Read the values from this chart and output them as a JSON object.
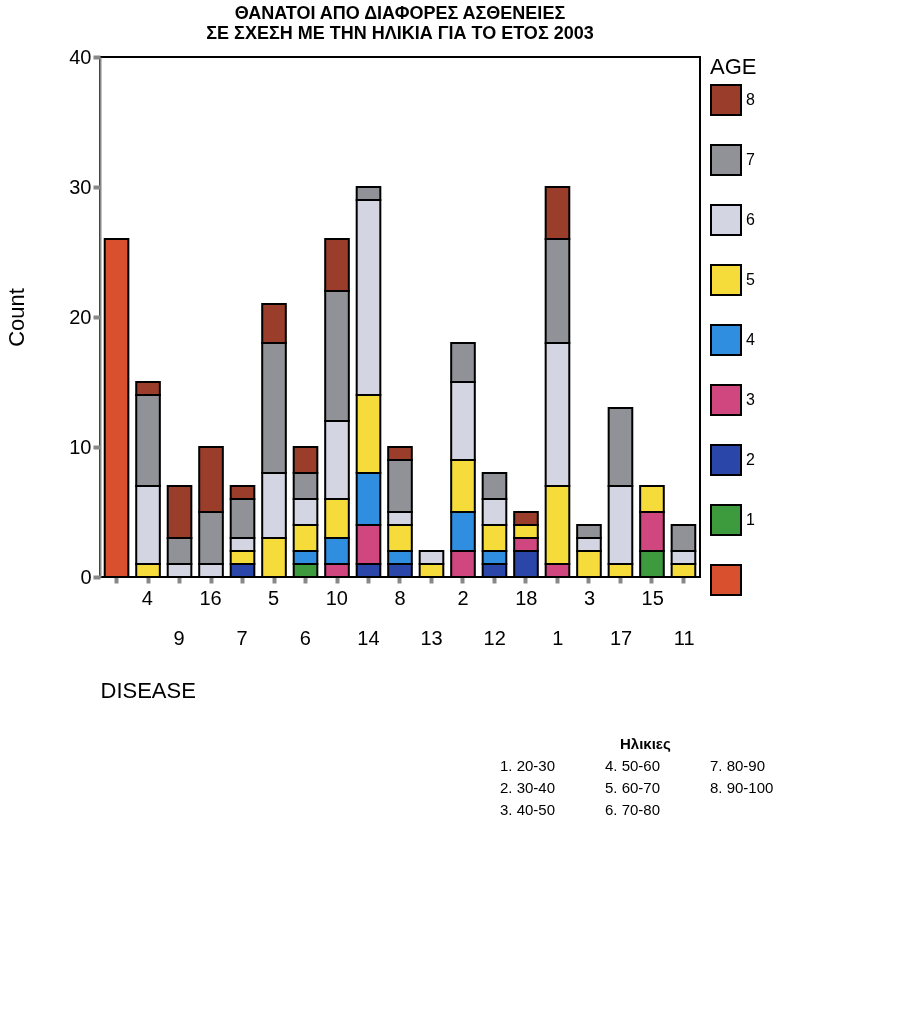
{
  "chart_data": {
    "type": "bar",
    "title": "ΘΑΝΑΤΟΙ ΑΠΟ ΔΙΑΦΟΡΕΣ ΑΣΘΕΝΕΙΕΣ\nΣΕ ΣΧΕΣΗ ΜΕ ΤΗΝ ΗΛΙΚΙΑ ΓΙΑ ΤΟ ΕΤΟΣ 2003",
    "xlabel": "DISEASE",
    "ylabel": "Count",
    "legend_title": "AGE",
    "categories": [
      null,
      "4",
      "9",
      "16",
      "7",
      "5",
      "6",
      "10",
      "14",
      "8",
      "13",
      "2",
      "12",
      "18",
      "1",
      "3",
      "17",
      "15",
      "11"
    ],
    "stacked": true,
    "ylim": [
      0,
      40
    ],
    "yticks": [
      0,
      10,
      20,
      30,
      40
    ],
    "grid": false,
    "legend": "right",
    "series": [
      {
        "color": "#d9502f",
        "values": [
          26,
          null,
          null,
          null,
          null,
          null,
          null,
          null,
          null,
          null,
          null,
          null,
          null,
          null,
          null,
          null,
          null,
          null,
          null
        ]
      },
      {
        "name": "1",
        "color": "#3d9a3d",
        "values": [
          null,
          null,
          null,
          null,
          null,
          null,
          1,
          null,
          null,
          null,
          null,
          null,
          null,
          null,
          null,
          null,
          null,
          2,
          null
        ]
      },
      {
        "name": "2",
        "color": "#2a46a8",
        "values": [
          null,
          null,
          null,
          null,
          1,
          null,
          null,
          null,
          1,
          1,
          null,
          null,
          1,
          2,
          null,
          null,
          null,
          null,
          null
        ]
      },
      {
        "name": "3",
        "color": "#d0467e",
        "values": [
          null,
          null,
          null,
          null,
          null,
          null,
          null,
          1,
          3,
          null,
          null,
          2,
          null,
          1,
          1,
          null,
          null,
          3,
          null
        ]
      },
      {
        "name": "4",
        "color": "#2f8ee0",
        "values": [
          null,
          null,
          null,
          null,
          null,
          null,
          1,
          2,
          4,
          1,
          null,
          3,
          1,
          null,
          null,
          null,
          null,
          null,
          null
        ]
      },
      {
        "name": "5",
        "color": "#f5dc3a",
        "values": [
          null,
          1,
          null,
          null,
          1,
          3,
          2,
          3,
          6,
          2,
          1,
          4,
          2,
          1,
          6,
          2,
          1,
          2,
          1
        ]
      },
      {
        "name": "6",
        "color": "#d3d5e2",
        "values": [
          null,
          6,
          1,
          1,
          1,
          5,
          2,
          6,
          15,
          1,
          1,
          6,
          2,
          null,
          11,
          1,
          6,
          null,
          1
        ]
      },
      {
        "name": "7",
        "color": "#909298",
        "values": [
          null,
          7,
          2,
          4,
          3,
          10,
          2,
          10,
          1,
          4,
          null,
          3,
          2,
          null,
          8,
          1,
          6,
          null,
          2
        ]
      },
      {
        "name": "8",
        "color": "#9a3d2a",
        "values": [
          null,
          1,
          4,
          5,
          1,
          3,
          2,
          4,
          null,
          1,
          null,
          null,
          null,
          1,
          4,
          null,
          null,
          null,
          null
        ]
      }
    ],
    "annotations": [
      "Ηλικιες",
      "1. 20-30",
      "2. 30-40",
      "3. 40-50",
      "4. 50-60",
      "5. 60-70",
      "6. 70-80",
      "7. 80-90",
      "8. 90-100"
    ]
  }
}
